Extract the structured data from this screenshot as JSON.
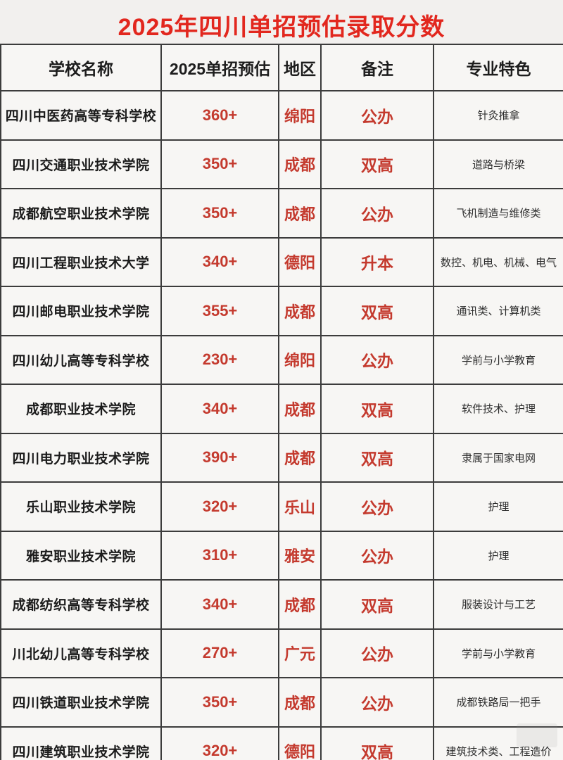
{
  "title": "2025年四川单招预估录取分数",
  "table": {
    "headers": [
      "学校名称",
      "2025单招预估",
      "地区",
      "备注",
      "专业特色"
    ],
    "rows": [
      {
        "school": "四川中医药高等专科学校",
        "score": "360+",
        "region": "绵阳",
        "note": "公办",
        "feature": "针灸推拿"
      },
      {
        "school": "四川交通职业技术学院",
        "score": "350+",
        "region": "成都",
        "note": "双高",
        "feature": "道路与桥梁"
      },
      {
        "school": "成都航空职业技术学院",
        "score": "350+",
        "region": "成都",
        "note": "公办",
        "feature": "飞机制造与维修类"
      },
      {
        "school": "四川工程职业技术大学",
        "score": "340+",
        "region": "德阳",
        "note": "升本",
        "feature": "数控、机电、机械、电气"
      },
      {
        "school": "四川邮电职业技术学院",
        "score": "355+",
        "region": "成都",
        "note": "双高",
        "feature": "通讯类、计算机类"
      },
      {
        "school": "四川幼儿高等专科学校",
        "score": "230+",
        "region": "绵阳",
        "note": "公办",
        "feature": "学前与小学教育"
      },
      {
        "school": "成都职业技术学院",
        "score": "340+",
        "region": "成都",
        "note": "双高",
        "feature": "软件技术、护理"
      },
      {
        "school": "四川电力职业技术学院",
        "score": "390+",
        "region": "成都",
        "note": "双高",
        "feature": "隶属于国家电网"
      },
      {
        "school": "乐山职业技术学院",
        "score": "320+",
        "region": "乐山",
        "note": "公办",
        "feature": "护理"
      },
      {
        "school": "雅安职业技术学院",
        "score": "310+",
        "region": "雅安",
        "note": "公办",
        "feature": "护理"
      },
      {
        "school": "成都纺织高等专科学校",
        "score": "340+",
        "region": "成都",
        "note": "双高",
        "feature": "服装设计与工艺"
      },
      {
        "school": "川北幼儿高等专科学校",
        "score": "270+",
        "region": "广元",
        "note": "公办",
        "feature": "学前与小学教育"
      },
      {
        "school": "四川铁道职业技术学院",
        "score": "350+",
        "region": "成都",
        "note": "公办",
        "feature": "成都铁路局一把手"
      },
      {
        "school": "四川建筑职业技术学院",
        "score": "320+",
        "region": "德阳",
        "note": "双高",
        "feature": "建筑技术类、工程造价"
      }
    ]
  },
  "colors": {
    "title_red": "#e2271e",
    "accent_red": "#c43a2e",
    "border": "#3c3c3c",
    "page_bg": "#f2f0ee",
    "cell_bg": "#f7f6f4"
  }
}
